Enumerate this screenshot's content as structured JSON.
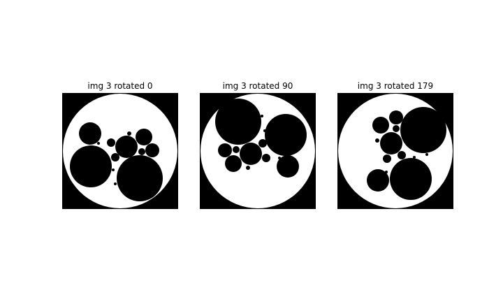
{
  "figure": {
    "panels": [
      {
        "title": "img 3 rotated 0",
        "rotation_degrees": 0
      },
      {
        "title": "img 3 rotated 90",
        "rotation_degrees": 90
      },
      {
        "title": "img 3 rotated 179",
        "rotation_degrees": 179
      }
    ],
    "colors": {
      "background": "#000000",
      "disk": "#ffffff",
      "holes": "#000000"
    }
  }
}
